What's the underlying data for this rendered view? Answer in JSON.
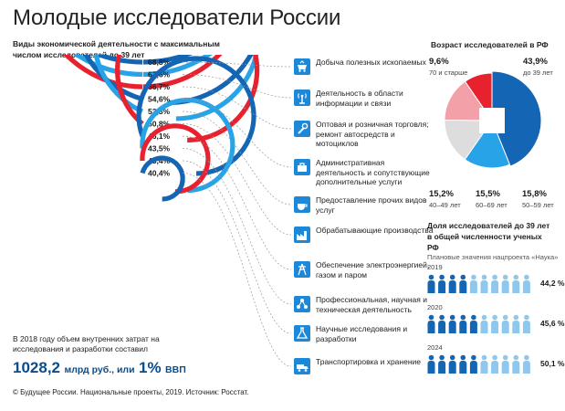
{
  "header": {
    "title": "Молодые исследователи России",
    "subtitle": "Виды экономической деятельности с максимальным числом исследователей до 39 лет"
  },
  "sectors": [
    {
      "label": "Добыча полезных ископаемых",
      "icon": "mining-cart-icon"
    },
    {
      "label": "Деятельность в области информации и связи",
      "icon": "antenna-icon"
    },
    {
      "label": "Оптовая и розничная торговля; ремонт автосредств и мотоциклов",
      "icon": "wrench-icon"
    },
    {
      "label": "Административная деятельность и сопутствующие дополнительные услуги",
      "icon": "briefcase-icon"
    },
    {
      "label": "Предоставление прочих видов услуг",
      "icon": "cup-icon"
    },
    {
      "label": "Обрабатывающие производства",
      "icon": "factory-icon"
    },
    {
      "label": "Обеспечение электроэнергией, газом и паром",
      "icon": "power-tower-icon"
    },
    {
      "label": "Профессиональная, научная и техническая деятельность",
      "icon": "network-icon"
    },
    {
      "label": "Научные исследования и разработки",
      "icon": "flask-icon"
    },
    {
      "label": "Транспортировка и хранение",
      "icon": "truck-icon"
    }
  ],
  "chart_data": [
    {
      "type": "bar",
      "variant": "radial",
      "categories": [
        "Добыча полезных ископаемых",
        "Деятельность в области информации и связи",
        "Оптовая и розничная торговля; ремонт автосредств и мотоциклов",
        "Административная деятельность и сопутствующие дополнительные услуги",
        "Предоставление прочих видов услуг",
        "Обрабатывающие производства",
        "Обеспечение электроэнергией, газом и паром",
        "Профессиональная, научная и техническая деятельность",
        "Научные исследования и разработки",
        "Транспортировка и хранение"
      ],
      "values": [
        68.8,
        67.6,
        66.7,
        54.6,
        53.3,
        50.8,
        46.1,
        43.5,
        43.4,
        40.4
      ],
      "labels": [
        "68,8%",
        "67,6%",
        "66,7%",
        "54,6%",
        "53,3%",
        "50,8%",
        "46,1%",
        "43,5%",
        "43,4%",
        "40,4%"
      ],
      "colors": [
        "#1565b5",
        "#29a3e8",
        "#e8212f",
        "#1565b5",
        "#29a3e8",
        "#e8212f",
        "#1565b5",
        "#29a3e8",
        "#e8212f",
        "#1565b5"
      ],
      "ylim": [
        0,
        100
      ]
    },
    {
      "type": "pie",
      "title": "Возраст исследователей в РФ",
      "categories": [
        "до 39 лет",
        "50–59 лет",
        "60–69 лет",
        "40–49 лет",
        "70 и старше"
      ],
      "values": [
        43.9,
        15.8,
        15.5,
        15.2,
        9.6
      ],
      "labels": [
        "43,9%",
        "15,8%",
        "15,5%",
        "15,2%",
        "9,6%"
      ],
      "colors": [
        "#1565b5",
        "#29a3e8",
        "#dddddd",
        "#f2a1a8",
        "#e8212f"
      ]
    },
    {
      "type": "bar",
      "variant": "pictogram",
      "title": "Доля исследователей до 39 лет в общей численности ученых РФ",
      "note": "Плановые значения нацпроекта «Наука»",
      "categories": [
        "2019",
        "2020",
        "2024"
      ],
      "values": [
        44.2,
        45.6,
        50.1
      ],
      "labels": [
        "44,2 %",
        "45,6 %",
        "50,1 %"
      ],
      "colors": [
        "#1565b5",
        "#8ec8ee"
      ]
    }
  ],
  "age_labels": {
    "p70": {
      "value": "9,6%",
      "sub": "70 и старше"
    },
    "p39": {
      "value": "43,9%",
      "sub": "до 39 лет"
    },
    "p40": {
      "value": "15,2%",
      "sub": "40–49 лет"
    },
    "p60": {
      "value": "15,5%",
      "sub": "60–69 лет"
    },
    "p50": {
      "value": "15,8%",
      "sub": "50–59 лет"
    }
  },
  "investment": {
    "note": "В 2018 году объем внутренних затрат на исследования и разработки составил",
    "amount": "1028,2",
    "amount_unit": "млрд руб., или",
    "share": "1%",
    "share_unit": "ВВП"
  },
  "source": "© Будущее России. Национальные проекты, 2019. Источник: Росстат."
}
